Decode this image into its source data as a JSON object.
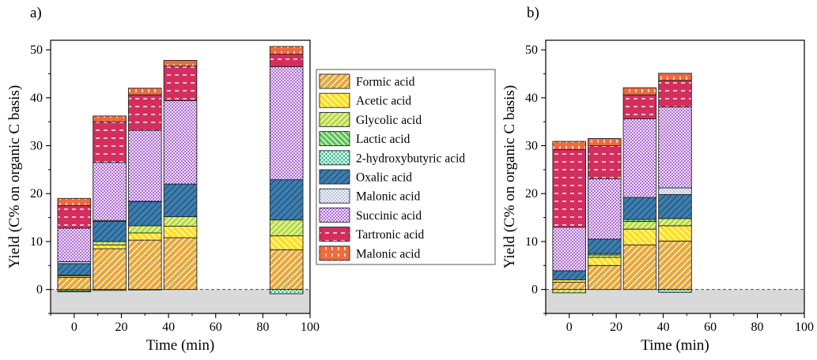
{
  "figure": {
    "panel_labels": [
      "a)",
      "b)"
    ]
  },
  "colors": {
    "Formic acid": "#E8A838",
    "Acetic acid": "#FFE01A",
    "Glycolic acid": "#B7DC3C",
    "Lactic acid": "#5DC45A",
    "2-hydroxybutyric acid": "#2FB98E",
    "Oxalic acid": "#3D7EAF",
    "Malonic acid": "#A9B9D9",
    "Succinic acid": "#9C47D4",
    "Tartronic acid": "#D42E5E",
    "Malonic acid (top)": "#EF6A3C"
  },
  "chart_data": [
    {
      "type": "bar",
      "stacked": true,
      "panel": "a)",
      "xlabel": "Time (min)",
      "ylabel": "Yield (C% on organic C basis)",
      "xlim": [
        -10,
        100
      ],
      "ylim": [
        -5,
        52
      ],
      "xticks": [
        0,
        20,
        40,
        60,
        80,
        100
      ],
      "yticks": [
        0,
        10,
        20,
        30,
        40,
        50
      ],
      "x": [
        0,
        15,
        30,
        45,
        90
      ],
      "series": [
        {
          "name": "Formic acid",
          "values": [
            2.5,
            8.5,
            10.3,
            10.8,
            8.3
          ]
        },
        {
          "name": "Acetic acid",
          "values": [
            0.3,
            0.8,
            1.5,
            2.4,
            2.9
          ]
        },
        {
          "name": "Glycolic acid",
          "values": [
            0.2,
            0.7,
            1.5,
            2.0,
            3.3
          ]
        },
        {
          "name": "Lactic acid",
          "values": [
            -0.3,
            -0.2,
            -0.1,
            0,
            0
          ]
        },
        {
          "name": "2-hydroxybutyric acid",
          "values": [
            -0.2,
            0,
            0,
            0,
            -0.9
          ]
        },
        {
          "name": "Oxalic acid",
          "values": [
            2.4,
            4.2,
            5.0,
            6.8,
            8.4
          ]
        },
        {
          "name": "Malonic acid",
          "values": [
            0.4,
            0.2,
            0.1,
            0,
            0
          ]
        },
        {
          "name": "Succinic acid",
          "values": [
            7.0,
            12.1,
            14.8,
            17.4,
            23.6
          ]
        },
        {
          "name": "Tartronic acid",
          "values": [
            4.7,
            8.5,
            7.4,
            7.2,
            2.6
          ]
        },
        {
          "name": "Malonic acid",
          "values": [
            1.5,
            1.2,
            1.4,
            1.2,
            1.6
          ]
        }
      ],
      "negative_region": "shaded grey",
      "zero_line": "dashed"
    },
    {
      "type": "bar",
      "stacked": true,
      "panel": "b)",
      "xlabel": "Time (min)",
      "ylabel": "Yield (C% on organic C basis)",
      "xlim": [
        -10,
        100
      ],
      "ylim": [
        -5,
        52
      ],
      "xticks": [
        0,
        20,
        40,
        60,
        80,
        100
      ],
      "yticks": [
        0,
        10,
        20,
        30,
        40,
        50
      ],
      "x": [
        0,
        15,
        30,
        45
      ],
      "series": [
        {
          "name": "Formic acid",
          "values": [
            1.5,
            5.0,
            9.3,
            10.1
          ]
        },
        {
          "name": "Acetic acid",
          "values": [
            0.5,
            1.7,
            3.3,
            3.2
          ]
        },
        {
          "name": "Glycolic acid",
          "values": [
            -0.7,
            0.5,
            1.6,
            1.5
          ]
        },
        {
          "name": "Lactic acid",
          "values": [
            0,
            0.3,
            0.4,
            0
          ]
        },
        {
          "name": "2-hydroxybutyric acid",
          "values": [
            0,
            0,
            0,
            -0.6
          ]
        },
        {
          "name": "Oxalic acid",
          "values": [
            1.9,
            3.0,
            4.6,
            5.0
          ]
        },
        {
          "name": "Malonic acid",
          "values": [
            0,
            0,
            0,
            1.4
          ]
        },
        {
          "name": "Succinic acid",
          "values": [
            9.1,
            12.6,
            16.4,
            16.9
          ]
        },
        {
          "name": "Tartronic acid",
          "values": [
            16.2,
            6.9,
            5.0,
            5.5
          ]
        },
        {
          "name": "Malonic acid",
          "values": [
            1.7,
            1.5,
            1.5,
            1.5
          ]
        }
      ],
      "negative_region": "shaded grey",
      "zero_line": "dashed"
    }
  ],
  "legend": {
    "placement": "between panels",
    "entries": [
      "Formic acid",
      "Acetic acid",
      "Glycolic acid",
      "Lactic acid",
      "2-hydroxybutyric acid",
      "Oxalic acid",
      "Malonic acid",
      "Succinic acid",
      "Tartronic acid",
      "Malonic acid"
    ]
  }
}
